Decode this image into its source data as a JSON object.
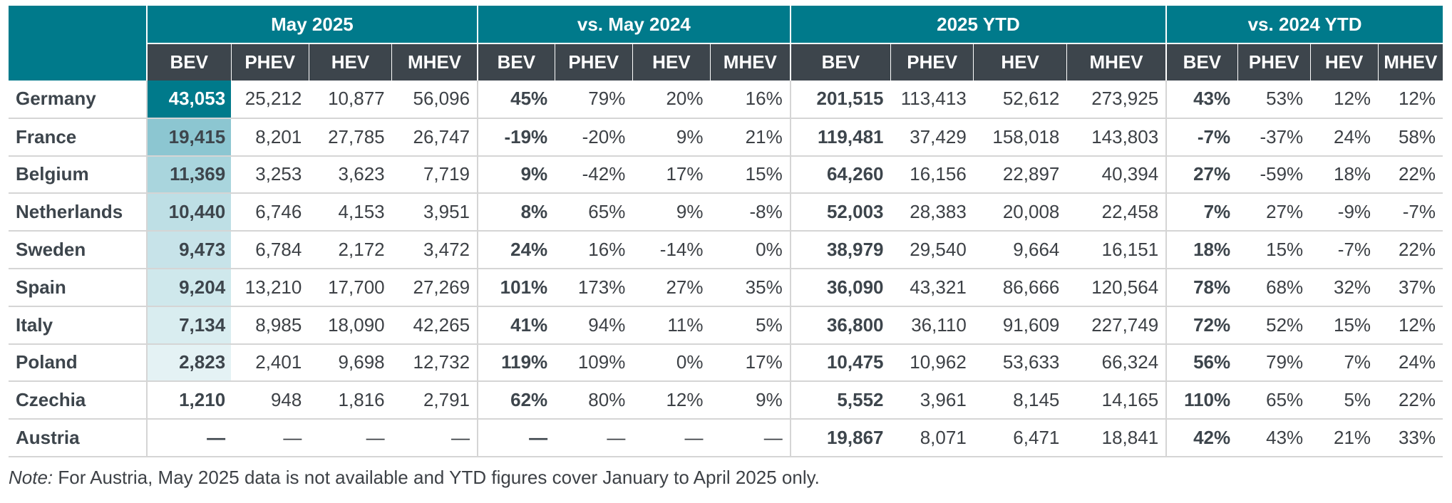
{
  "groups": [
    "May 2025",
    "vs. May 2024",
    "2025 YTD",
    "vs. 2024 YTD"
  ],
  "subheaders": [
    "BEV",
    "PHEV",
    "HEV",
    "MHEV"
  ],
  "heat_colors": [
    "#007a8b",
    "#8cc6d1",
    "#a9d5dd",
    "#bedfe5",
    "#c7e3e9",
    "#cfe8ec",
    "#d9edf0",
    "#e4f2f4",
    "#ffffff",
    "#ffffff"
  ],
  "rows": [
    {
      "country": "Germany",
      "may": [
        "43,053",
        "25,212",
        "10,877",
        "56,096"
      ],
      "vs_may": [
        "45%",
        "79%",
        "20%",
        "16%"
      ],
      "ytd": [
        "201,515",
        "113,413",
        "52,612",
        "273,925"
      ],
      "vs_ytd": [
        "43%",
        "53%",
        "12%",
        "12%"
      ]
    },
    {
      "country": "France",
      "may": [
        "19,415",
        "8,201",
        "27,785",
        "26,747"
      ],
      "vs_may": [
        "-19%",
        "-20%",
        "9%",
        "21%"
      ],
      "ytd": [
        "119,481",
        "37,429",
        "158,018",
        "143,803"
      ],
      "vs_ytd": [
        "-7%",
        "-37%",
        "24%",
        "58%"
      ]
    },
    {
      "country": "Belgium",
      "may": [
        "11,369",
        "3,253",
        "3,623",
        "7,719"
      ],
      "vs_may": [
        "9%",
        "-42%",
        "17%",
        "15%"
      ],
      "ytd": [
        "64,260",
        "16,156",
        "22,897",
        "40,394"
      ],
      "vs_ytd": [
        "27%",
        "-59%",
        "18%",
        "22%"
      ]
    },
    {
      "country": "Netherlands",
      "may": [
        "10,440",
        "6,746",
        "4,153",
        "3,951"
      ],
      "vs_may": [
        "8%",
        "65%",
        "9%",
        "-8%"
      ],
      "ytd": [
        "52,003",
        "28,383",
        "20,008",
        "22,458"
      ],
      "vs_ytd": [
        "7%",
        "27%",
        "-9%",
        "-7%"
      ]
    },
    {
      "country": "Sweden",
      "may": [
        "9,473",
        "6,784",
        "2,172",
        "3,472"
      ],
      "vs_may": [
        "24%",
        "16%",
        "-14%",
        "0%"
      ],
      "ytd": [
        "38,979",
        "29,540",
        "9,664",
        "16,151"
      ],
      "vs_ytd": [
        "18%",
        "15%",
        "-7%",
        "22%"
      ]
    },
    {
      "country": "Spain",
      "may": [
        "9,204",
        "13,210",
        "17,700",
        "27,269"
      ],
      "vs_may": [
        "101%",
        "173%",
        "27%",
        "35%"
      ],
      "ytd": [
        "36,090",
        "43,321",
        "86,666",
        "120,564"
      ],
      "vs_ytd": [
        "78%",
        "68%",
        "32%",
        "37%"
      ]
    },
    {
      "country": "Italy",
      "may": [
        "7,134",
        "8,985",
        "18,090",
        "42,265"
      ],
      "vs_may": [
        "41%",
        "94%",
        "11%",
        "5%"
      ],
      "ytd": [
        "36,800",
        "36,110",
        "91,609",
        "227,749"
      ],
      "vs_ytd": [
        "72%",
        "52%",
        "15%",
        "12%"
      ]
    },
    {
      "country": "Poland",
      "may": [
        "2,823",
        "2,401",
        "9,698",
        "12,732"
      ],
      "vs_may": [
        "119%",
        "109%",
        "0%",
        "17%"
      ],
      "ytd": [
        "10,475",
        "10,962",
        "53,633",
        "66,324"
      ],
      "vs_ytd": [
        "56%",
        "79%",
        "7%",
        "24%"
      ]
    },
    {
      "country": "Czechia",
      "may": [
        "1,210",
        "948",
        "1,816",
        "2,791"
      ],
      "vs_may": [
        "62%",
        "80%",
        "12%",
        "9%"
      ],
      "ytd": [
        "5,552",
        "3,961",
        "8,145",
        "14,165"
      ],
      "vs_ytd": [
        "110%",
        "65%",
        "5%",
        "22%"
      ]
    },
    {
      "country": "Austria",
      "may": [
        "—",
        "—",
        "—",
        "—"
      ],
      "vs_may": [
        "—",
        "—",
        "—",
        "—"
      ],
      "ytd": [
        "19,867",
        "8,071",
        "6,471",
        "18,841"
      ],
      "vs_ytd": [
        "42%",
        "43%",
        "21%",
        "33%"
      ]
    }
  ],
  "note": {
    "label": "Note:",
    "text": " For Austria, May 2025 data is not available and YTD figures cover January to April 2025 only."
  }
}
